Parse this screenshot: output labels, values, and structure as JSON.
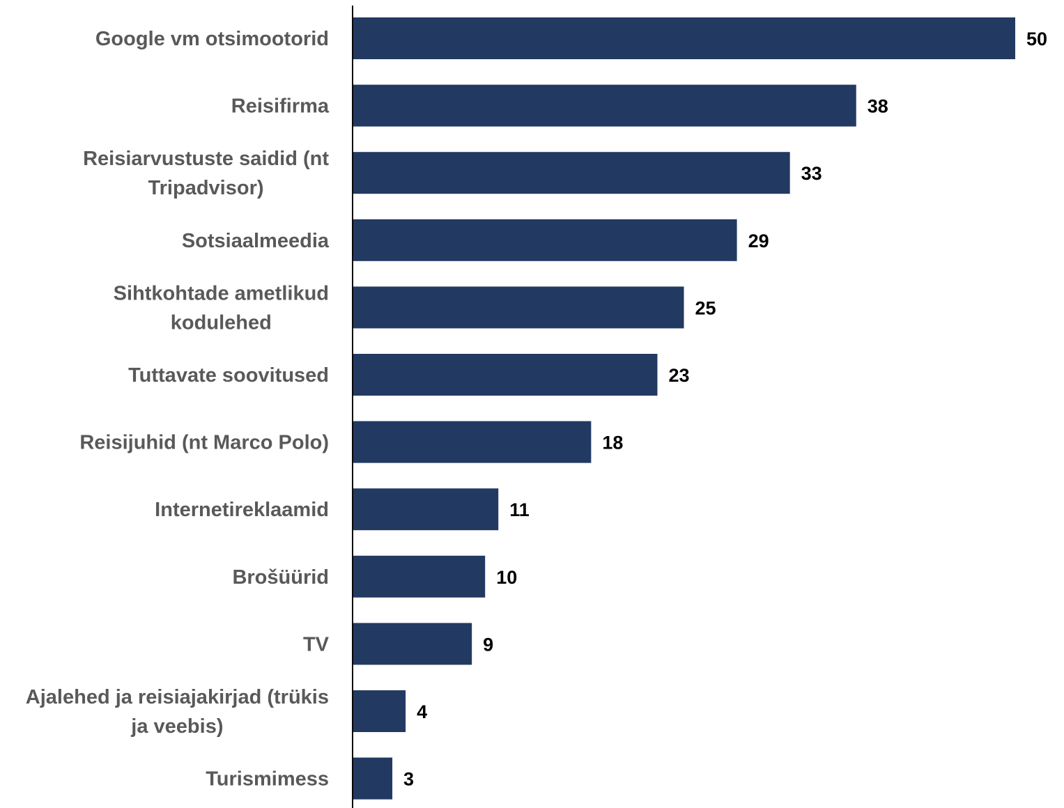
{
  "chart_data": {
    "type": "bar",
    "orientation": "horizontal",
    "categories": [
      [
        "Google vm otsimootorid"
      ],
      [
        "Reisifirma"
      ],
      [
        "Reisiarvustuste saidid (nt",
        "Tripadvisor)"
      ],
      [
        "Sotsiaalmeedia"
      ],
      [
        "Sihtkohtade ametlikud",
        "kodulehed"
      ],
      [
        "Tuttavate soovitused"
      ],
      [
        "Reisijuhid (nt Marco Polo)"
      ],
      [
        "Internetireklaamid"
      ],
      [
        "Brošüürid"
      ],
      [
        "TV"
      ],
      [
        "Ajalehed ja reisiajakirjad (trükis",
        "ja veebis)"
      ],
      [
        "Turismimess"
      ]
    ],
    "values": [
      50,
      38,
      33,
      29,
      25,
      23,
      18,
      11,
      10,
      9,
      4,
      3
    ],
    "xlim": [
      0,
      50
    ],
    "grid": false,
    "legend": "none",
    "bar_color": "#223962",
    "axis_color": "#000000",
    "label_color": "#595959",
    "value_label_color": "#000000"
  }
}
